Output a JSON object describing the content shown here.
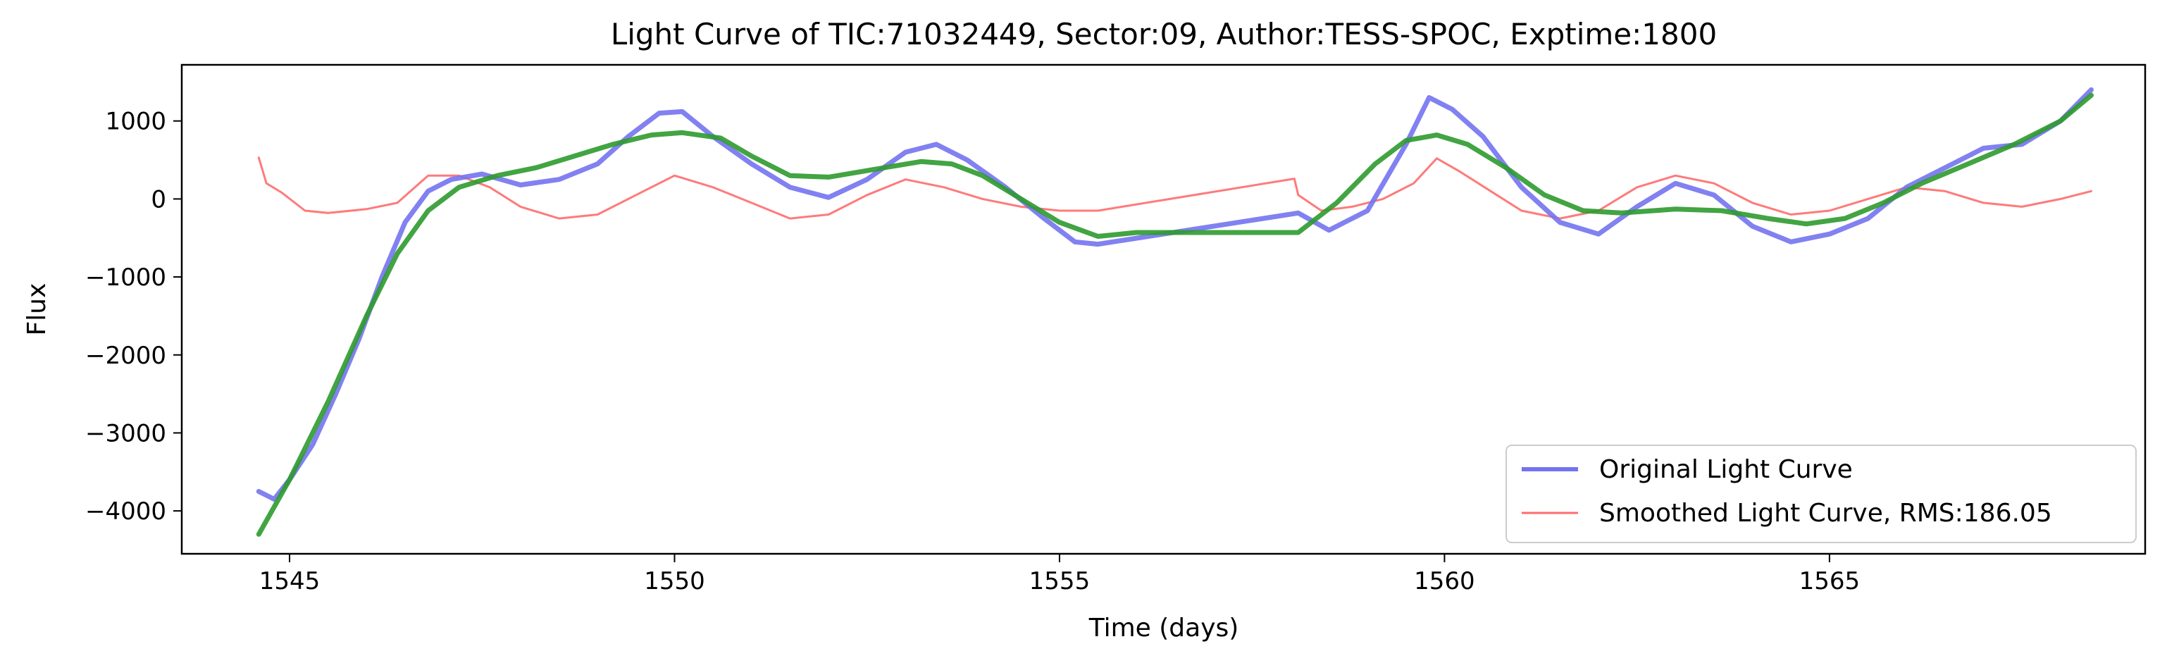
{
  "chart_data": {
    "type": "line",
    "title": "Light Curve of TIC:71032449, Sector:09, Author:TESS-SPOC, Exptime:1800",
    "xlabel": "Time (days)",
    "ylabel": "Flux",
    "xlim": [
      1543.6,
      1569.1
    ],
    "ylim": [
      -4550,
      1720
    ],
    "xticks": [
      1545,
      1550,
      1555,
      1560,
      1565
    ],
    "yticks": [
      -4000,
      -3000,
      -2000,
      -1000,
      0,
      1000
    ],
    "grid": false,
    "legend_position": "bottom-right",
    "series": [
      {
        "name": "Original Light Curve",
        "color": "#7373f0",
        "x": [
          1544.6,
          1544.8,
          1545.0,
          1545.3,
          1545.6,
          1545.9,
          1546.2,
          1546.5,
          1546.8,
          1547.1,
          1547.5,
          1548.0,
          1548.5,
          1549.0,
          1549.4,
          1549.8,
          1550.1,
          1550.5,
          1551.0,
          1551.5,
          1552.0,
          1552.5,
          1553.0,
          1553.4,
          1553.8,
          1554.3,
          1554.8,
          1555.2,
          1555.5,
          1558.1,
          1558.5,
          1559.0,
          1559.5,
          1559.8,
          1560.1,
          1560.5,
          1561.0,
          1561.5,
          1562.0,
          1562.5,
          1563.0,
          1563.5,
          1564.0,
          1564.5,
          1565.0,
          1565.5,
          1566.0,
          1566.5,
          1567.0,
          1567.5,
          1568.0,
          1568.4
        ],
        "y": [
          -3750,
          -3850,
          -3600,
          -3150,
          -2500,
          -1800,
          -1000,
          -300,
          100,
          250,
          320,
          180,
          250,
          450,
          800,
          1100,
          1120,
          800,
          450,
          150,
          20,
          250,
          600,
          700,
          500,
          150,
          -250,
          -550,
          -580,
          -180,
          -400,
          -150,
          700,
          1300,
          1150,
          800,
          150,
          -300,
          -450,
          -100,
          200,
          50,
          -350,
          -550,
          -450,
          -250,
          150,
          400,
          650,
          700,
          1000,
          1400
        ]
      },
      {
        "name": "Smoothed Light Curve, RMS:186.05",
        "color": "#ff6b6b",
        "x": [
          1544.6,
          1544.7,
          1544.9,
          1545.2,
          1545.5,
          1546.0,
          1546.4,
          1546.8,
          1547.2,
          1547.6,
          1548.0,
          1548.5,
          1549.0,
          1549.5,
          1550.0,
          1550.5,
          1551.0,
          1551.5,
          1552.0,
          1552.5,
          1553.0,
          1553.5,
          1554.0,
          1554.5,
          1555.0,
          1555.5,
          1558.05,
          1558.1,
          1558.4,
          1558.8,
          1559.2,
          1559.6,
          1559.9,
          1560.2,
          1560.6,
          1561.0,
          1561.5,
          1562.0,
          1562.5,
          1563.0,
          1563.5,
          1564.0,
          1564.5,
          1565.0,
          1565.5,
          1566.0,
          1566.5,
          1567.0,
          1567.5,
          1568.0,
          1568.4
        ],
        "y": [
          530,
          200,
          80,
          -150,
          -180,
          -130,
          -50,
          300,
          300,
          150,
          -100,
          -250,
          -200,
          50,
          300,
          150,
          -50,
          -250,
          -200,
          50,
          250,
          150,
          0,
          -100,
          -150,
          -150,
          260,
          50,
          -150,
          -100,
          0,
          200,
          520,
          350,
          100,
          -150,
          -250,
          -150,
          150,
          300,
          200,
          -50,
          -200,
          -150,
          0,
          150,
          100,
          -50,
          -100,
          0,
          100
        ]
      },
      {
        "name": "",
        "color": "#2e9a2e",
        "x": [
          1544.6,
          1545.0,
          1545.5,
          1546.0,
          1546.4,
          1546.8,
          1547.2,
          1547.7,
          1548.2,
          1548.7,
          1549.2,
          1549.7,
          1550.1,
          1550.6,
          1551.0,
          1551.5,
          1552.0,
          1552.6,
          1553.2,
          1553.6,
          1554.0,
          1554.5,
          1555.0,
          1555.5,
          1556.0,
          1557.0,
          1558.1,
          1558.6,
          1559.1,
          1559.5,
          1559.9,
          1560.3,
          1560.8,
          1561.3,
          1561.8,
          1562.3,
          1563.0,
          1563.6,
          1564.2,
          1564.7,
          1565.2,
          1565.7,
          1566.2,
          1566.8,
          1567.4,
          1568.0,
          1568.4
        ],
        "y": [
          -4300,
          -3600,
          -2600,
          -1500,
          -700,
          -150,
          150,
          300,
          400,
          550,
          700,
          820,
          850,
          780,
          550,
          300,
          280,
          380,
          480,
          450,
          300,
          0,
          -300,
          -480,
          -430,
          -430,
          -430,
          -50,
          450,
          750,
          820,
          700,
          400,
          50,
          -150,
          -180,
          -130,
          -150,
          -250,
          -320,
          -250,
          -50,
          200,
          450,
          700,
          1000,
          1330
        ]
      }
    ]
  }
}
